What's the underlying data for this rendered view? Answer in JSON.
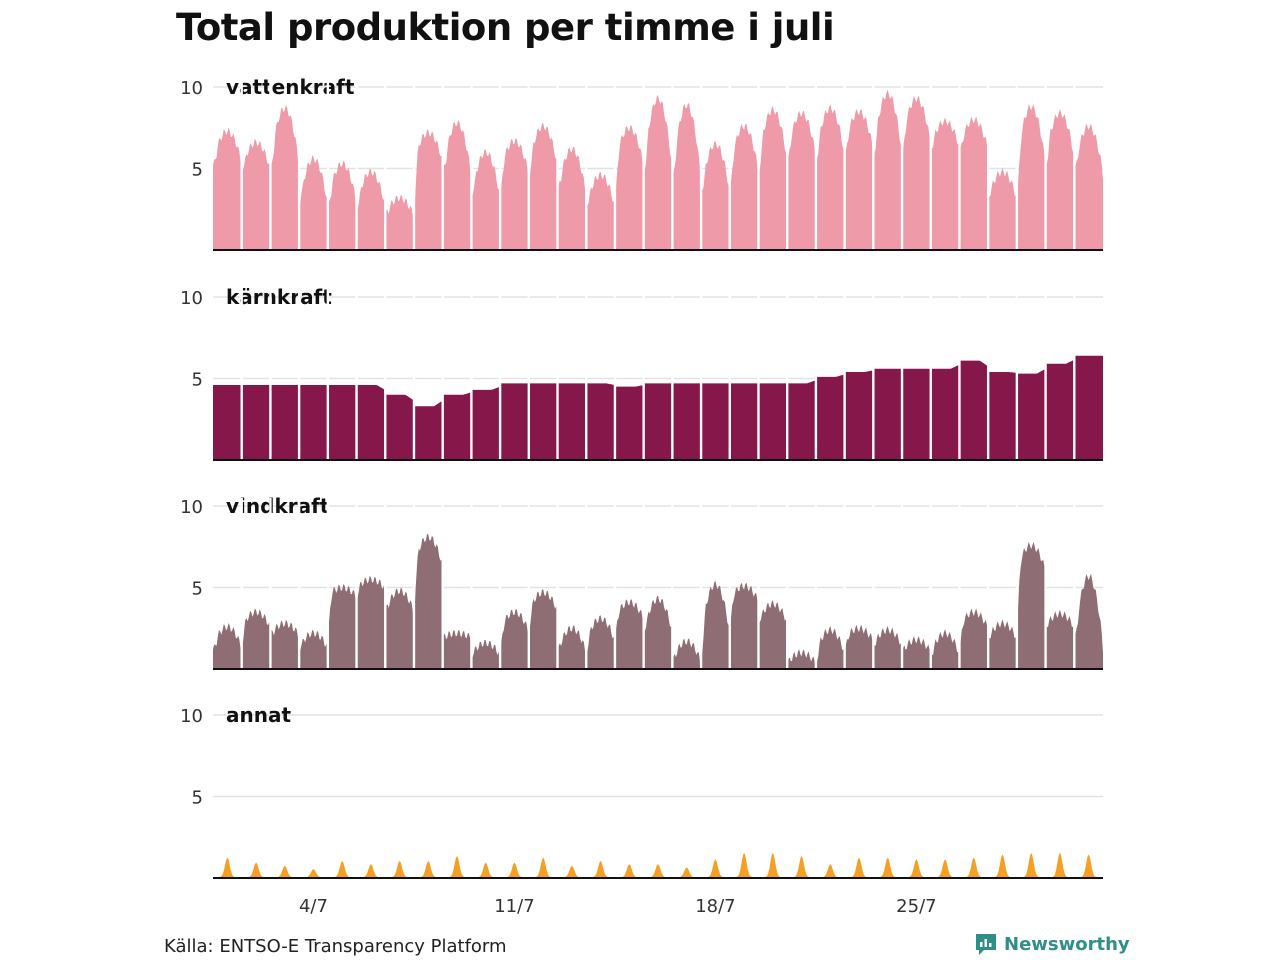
{
  "title": "Total produktion per timme i juli",
  "source": "Källa: ENTSO-E Transparency Platform",
  "brand": "Newsworthy",
  "colors": {
    "vattenkraft": "#ef9aa8",
    "karnkraft": "#86174a",
    "vindkraft": "#8e6d75",
    "annat": "#f5a025",
    "grid": "#e3e3e3",
    "baseline": "#111111",
    "brand": "#2f8f86"
  },
  "chart_data": {
    "type": "area",
    "layout": "small-multiples",
    "x_unit": "day of July (hourly resolution, 1–31)",
    "x_ticks": [
      {
        "day": 4,
        "label": "4/7"
      },
      {
        "day": 11,
        "label": "11/7"
      },
      {
        "day": 18,
        "label": "18/7"
      },
      {
        "day": 25,
        "label": "25/7"
      }
    ],
    "y_ticks": [
      5,
      10
    ],
    "ylim": [
      0,
      10
    ],
    "grid": true,
    "panels": [
      {
        "name": "vattenkraft",
        "daily_profile": [
          {
            "min": 5.2,
            "max": 7.3
          },
          {
            "min": 4.8,
            "max": 6.6
          },
          {
            "min": 5.0,
            "max": 8.7
          },
          {
            "min": 2.5,
            "max": 5.6
          },
          {
            "min": 2.7,
            "max": 5.3
          },
          {
            "min": 2.5,
            "max": 4.8
          },
          {
            "min": 2.0,
            "max": 3.2
          },
          {
            "min": 5.3,
            "max": 7.2
          },
          {
            "min": 4.3,
            "max": 7.8
          },
          {
            "min": 3.0,
            "max": 6.0
          },
          {
            "min": 4.5,
            "max": 6.7
          },
          {
            "min": 5.0,
            "max": 7.6
          },
          {
            "min": 3.2,
            "max": 6.2
          },
          {
            "min": 2.5,
            "max": 4.6
          },
          {
            "min": 5.0,
            "max": 7.5
          },
          {
            "min": 4.6,
            "max": 9.3
          },
          {
            "min": 4.0,
            "max": 8.9
          },
          {
            "min": 3.3,
            "max": 6.5
          },
          {
            "min": 4.6,
            "max": 7.6
          },
          {
            "min": 5.3,
            "max": 8.6
          },
          {
            "min": 5.6,
            "max": 8.4
          },
          {
            "min": 5.6,
            "max": 8.7
          },
          {
            "min": 6.0,
            "max": 8.5
          },
          {
            "min": 5.7,
            "max": 9.6
          },
          {
            "min": 6.3,
            "max": 9.3
          },
          {
            "min": 6.2,
            "max": 7.9
          },
          {
            "min": 6.0,
            "max": 8.0
          },
          {
            "min": 3.0,
            "max": 4.8
          },
          {
            "min": 5.0,
            "max": 8.8
          },
          {
            "min": 5.5,
            "max": 8.4
          },
          {
            "min": 4.5,
            "max": 7.6
          }
        ]
      },
      {
        "name": "kärnkraft",
        "daily_level": [
          4.6,
          4.6,
          4.6,
          4.6,
          4.6,
          4.6,
          4.0,
          3.3,
          4.0,
          4.3,
          4.7,
          4.7,
          4.7,
          4.7,
          4.5,
          4.7,
          4.7,
          4.7,
          4.7,
          4.7,
          4.7,
          5.1,
          5.4,
          5.6,
          5.6,
          5.6,
          6.1,
          5.4,
          5.3,
          5.9,
          6.4
        ]
      },
      {
        "name": "vindkraft",
        "daily_profile": [
          {
            "min": 1.2,
            "max": 2.6
          },
          {
            "min": 2.5,
            "max": 3.5
          },
          {
            "min": 2.0,
            "max": 2.8
          },
          {
            "min": 1.2,
            "max": 2.2
          },
          {
            "min": 4.4,
            "max": 5.0
          },
          {
            "min": 4.9,
            "max": 5.5
          },
          {
            "min": 3.4,
            "max": 4.8
          },
          {
            "min": 6.2,
            "max": 8.1
          },
          {
            "min": 1.9,
            "max": 2.2
          },
          {
            "min": 0.8,
            "max": 1.6
          },
          {
            "min": 2.2,
            "max": 3.5
          },
          {
            "min": 3.5,
            "max": 4.7
          },
          {
            "min": 0.9,
            "max": 2.5
          },
          {
            "min": 1.6,
            "max": 3.1
          },
          {
            "min": 3.0,
            "max": 4.1
          },
          {
            "min": 2.1,
            "max": 4.3
          },
          {
            "min": 0.3,
            "max": 1.7
          },
          {
            "min": 2.0,
            "max": 5.2
          },
          {
            "min": 4.1,
            "max": 5.1
          },
          {
            "min": 2.8,
            "max": 4.0
          },
          {
            "min": 0.3,
            "max": 1.0
          },
          {
            "min": 0.9,
            "max": 2.4
          },
          {
            "min": 1.7,
            "max": 2.5
          },
          {
            "min": 1.4,
            "max": 2.4
          },
          {
            "min": 1.0,
            "max": 1.8
          },
          {
            "min": 0.8,
            "max": 2.2
          },
          {
            "min": 2.4,
            "max": 3.5
          },
          {
            "min": 1.8,
            "max": 2.8
          },
          {
            "min": 5.9,
            "max": 7.6
          },
          {
            "min": 2.5,
            "max": 3.4
          },
          {
            "min": 1.2,
            "max": 5.7
          }
        ]
      },
      {
        "name": "annat",
        "daily_peak": [
          1.2,
          0.9,
          0.7,
          0.5,
          1.0,
          0.8,
          1.0,
          1.0,
          1.3,
          0.9,
          0.9,
          1.2,
          0.7,
          1.0,
          0.8,
          0.8,
          0.6,
          1.1,
          1.5,
          1.5,
          1.3,
          0.8,
          1.2,
          1.2,
          1.1,
          1.1,
          1.2,
          1.4,
          1.5,
          1.5,
          1.4
        ],
        "base": 0.05
      }
    ]
  }
}
